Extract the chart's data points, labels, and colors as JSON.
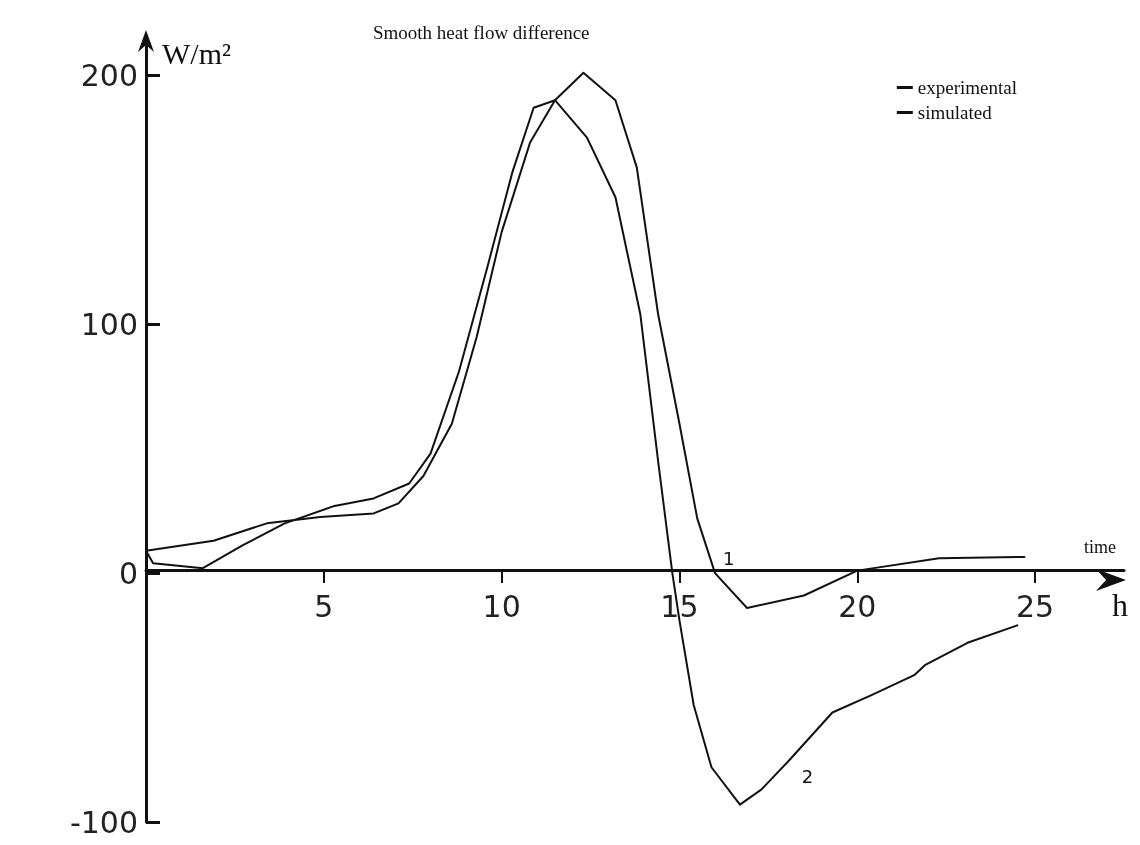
{
  "chart_data": {
    "type": "line",
    "title": "Smooth heat flow difference",
    "xlabel": "time",
    "ylabel": "W/m²",
    "xlim": [
      0,
      27.5
    ],
    "xticks": [
      5,
      10,
      15,
      20,
      25
    ],
    "ylim": [
      -100,
      215
    ],
    "yticks": [
      -100,
      0,
      100,
      200
    ],
    "grid": false,
    "legend": "top right",
    "marker": "none",
    "line_style": "solid",
    "annotations": [
      "h",
      {
        "text": "1",
        "x": 16.0,
        "y": 0
      },
      {
        "text": "2",
        "x": 18.1,
        "y": -75
      }
    ],
    "series": [
      {
        "name": "experimental",
        "color": "#111111",
        "x": [
          0,
          1.9,
          3.4,
          4.9,
          6.4,
          7.1,
          7.8,
          8.6,
          9.3,
          10.0,
          10.8,
          11.5,
          12.3,
          13.2,
          13.8,
          14.4,
          15.0,
          15.5,
          16.0,
          16.9,
          18.5,
          20.0,
          22.3,
          24.7
        ],
        "values": [
          9,
          13,
          20,
          22.5,
          24,
          28,
          39,
          60,
          95,
          137,
          173,
          190,
          201,
          190,
          163,
          104,
          60,
          22,
          0,
          -14,
          -9,
          1,
          6,
          6.5
        ]
      },
      {
        "name": "simulated",
        "color": "#111111",
        "x": [
          0,
          0.2,
          1.6,
          2.7,
          3.9,
          5.3,
          6.4,
          7.4,
          8.0,
          8.8,
          9.6,
          10.3,
          10.9,
          11.5,
          12.4,
          13.2,
          13.9,
          14.4,
          14.8,
          15.0,
          15.4,
          15.9,
          16.7,
          17.3,
          18.1,
          19.3,
          20.4,
          21.6,
          21.9,
          23.1,
          24.5
        ],
        "values": [
          9,
          4,
          2,
          11,
          20,
          27,
          30,
          36,
          48,
          81,
          123,
          161,
          187,
          190,
          175,
          151,
          104,
          45,
          0,
          -19,
          -53,
          -78,
          -93,
          -87,
          -75,
          -56,
          -49,
          -41,
          -37,
          -28,
          -21
        ]
      }
    ]
  }
}
